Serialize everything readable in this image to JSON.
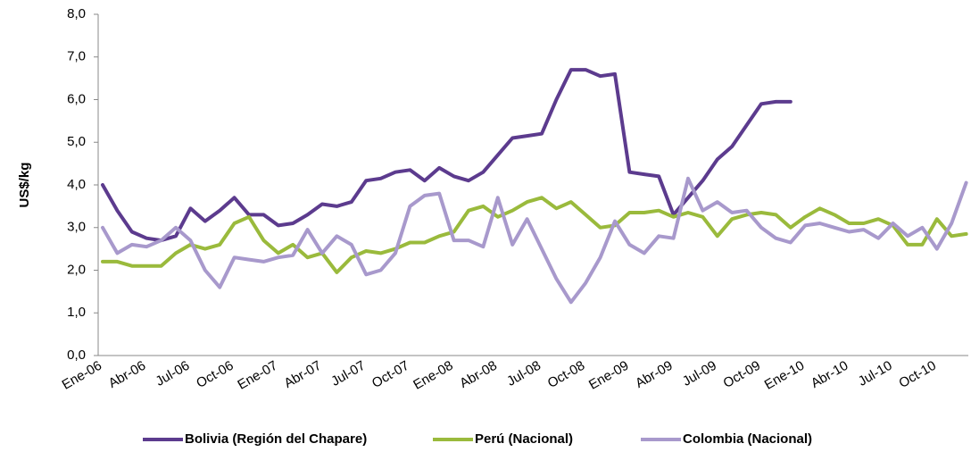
{
  "chart_data": {
    "type": "line",
    "y_label": "US$/kg",
    "categories": [
      "Ene-06",
      null,
      null,
      "Abr-06",
      null,
      null,
      "Jul-06",
      null,
      null,
      "Oct-06",
      null,
      null,
      "Ene-07",
      null,
      null,
      "Abr-07",
      null,
      null,
      "Jul-07",
      null,
      null,
      "Oct-07",
      null,
      null,
      "Ene-08",
      null,
      null,
      "Abr-08",
      null,
      null,
      "Jul-08",
      null,
      null,
      "Oct-08",
      null,
      null,
      "Ene-09",
      null,
      null,
      "Abr-09",
      null,
      null,
      "Jul-09",
      null,
      null,
      "Oct-09",
      null,
      null,
      "Ene-10",
      null,
      null,
      "Abr-10",
      null,
      null,
      "Jul-10",
      null,
      null,
      "Oct-10",
      null,
      null
    ],
    "series": [
      {
        "name": "Bolivia (Región del Chapare)",
        "color": "#5c3b8e",
        "values": [
          4.0,
          3.4,
          2.9,
          2.75,
          2.7,
          2.8,
          3.45,
          3.15,
          3.4,
          3.7,
          3.3,
          3.3,
          3.05,
          3.1,
          3.3,
          3.55,
          3.5,
          3.6,
          4.1,
          4.15,
          4.3,
          4.35,
          4.1,
          4.4,
          4.2,
          4.1,
          4.3,
          4.7,
          5.1,
          5.15,
          5.2,
          6.0,
          6.7,
          6.7,
          6.55,
          6.6,
          4.3,
          4.25,
          4.2,
          3.3,
          3.7,
          4.1,
          4.6,
          4.9,
          5.4,
          5.9,
          5.95,
          5.95,
          null,
          null,
          null,
          null,
          null,
          null,
          null,
          null,
          null,
          null,
          null,
          null
        ]
      },
      {
        "name": "Perú (Nacional)",
        "color": "#9aba3c",
        "values": [
          2.2,
          2.2,
          2.1,
          2.1,
          2.1,
          2.4,
          2.6,
          2.5,
          2.6,
          3.1,
          3.25,
          2.7,
          2.4,
          2.6,
          2.3,
          2.4,
          1.95,
          2.3,
          2.45,
          2.4,
          2.5,
          2.65,
          2.65,
          2.8,
          2.9,
          3.4,
          3.5,
          3.25,
          3.4,
          3.6,
          3.7,
          3.45,
          3.6,
          3.3,
          3.0,
          3.05,
          3.35,
          3.35,
          3.4,
          3.25,
          3.35,
          3.25,
          2.8,
          3.2,
          3.3,
          3.35,
          3.3,
          3.0,
          3.25,
          3.45,
          3.3,
          3.1,
          3.1,
          3.2,
          3.05,
          2.6,
          2.6,
          3.2,
          2.8,
          2.85
        ]
      },
      {
        "name": "Colombia (Nacional)",
        "color": "#a899cc",
        "values": [
          3.0,
          2.4,
          2.6,
          2.55,
          2.7,
          3.0,
          2.7,
          2.0,
          1.6,
          2.3,
          2.25,
          2.2,
          2.3,
          2.35,
          2.95,
          2.4,
          2.8,
          2.6,
          1.9,
          2.0,
          2.4,
          3.5,
          3.75,
          3.8,
          2.7,
          2.7,
          2.55,
          3.7,
          2.6,
          3.2,
          2.5,
          1.8,
          1.25,
          1.7,
          2.3,
          3.15,
          2.6,
          2.4,
          2.8,
          2.75,
          4.15,
          3.4,
          3.6,
          3.35,
          3.4,
          3.0,
          2.75,
          2.65,
          3.05,
          3.1,
          3.0,
          2.9,
          2.95,
          2.75,
          3.1,
          2.8,
          3.0,
          2.5,
          3.1,
          4.05
        ]
      }
    ],
    "ylim": [
      0,
      8
    ],
    "yticks": [
      {
        "value": 0,
        "label": "0,0"
      },
      {
        "value": 1,
        "label": "1,0"
      },
      {
        "value": 2,
        "label": "2,0"
      },
      {
        "value": 3,
        "label": "3,0"
      },
      {
        "value": 4,
        "label": "4,0"
      },
      {
        "value": 5,
        "label": "5,0"
      },
      {
        "value": 6,
        "label": "6,0"
      },
      {
        "value": 7,
        "label": "7,0"
      },
      {
        "value": 8,
        "label": "8,0"
      }
    ],
    "legend": "bottom"
  }
}
